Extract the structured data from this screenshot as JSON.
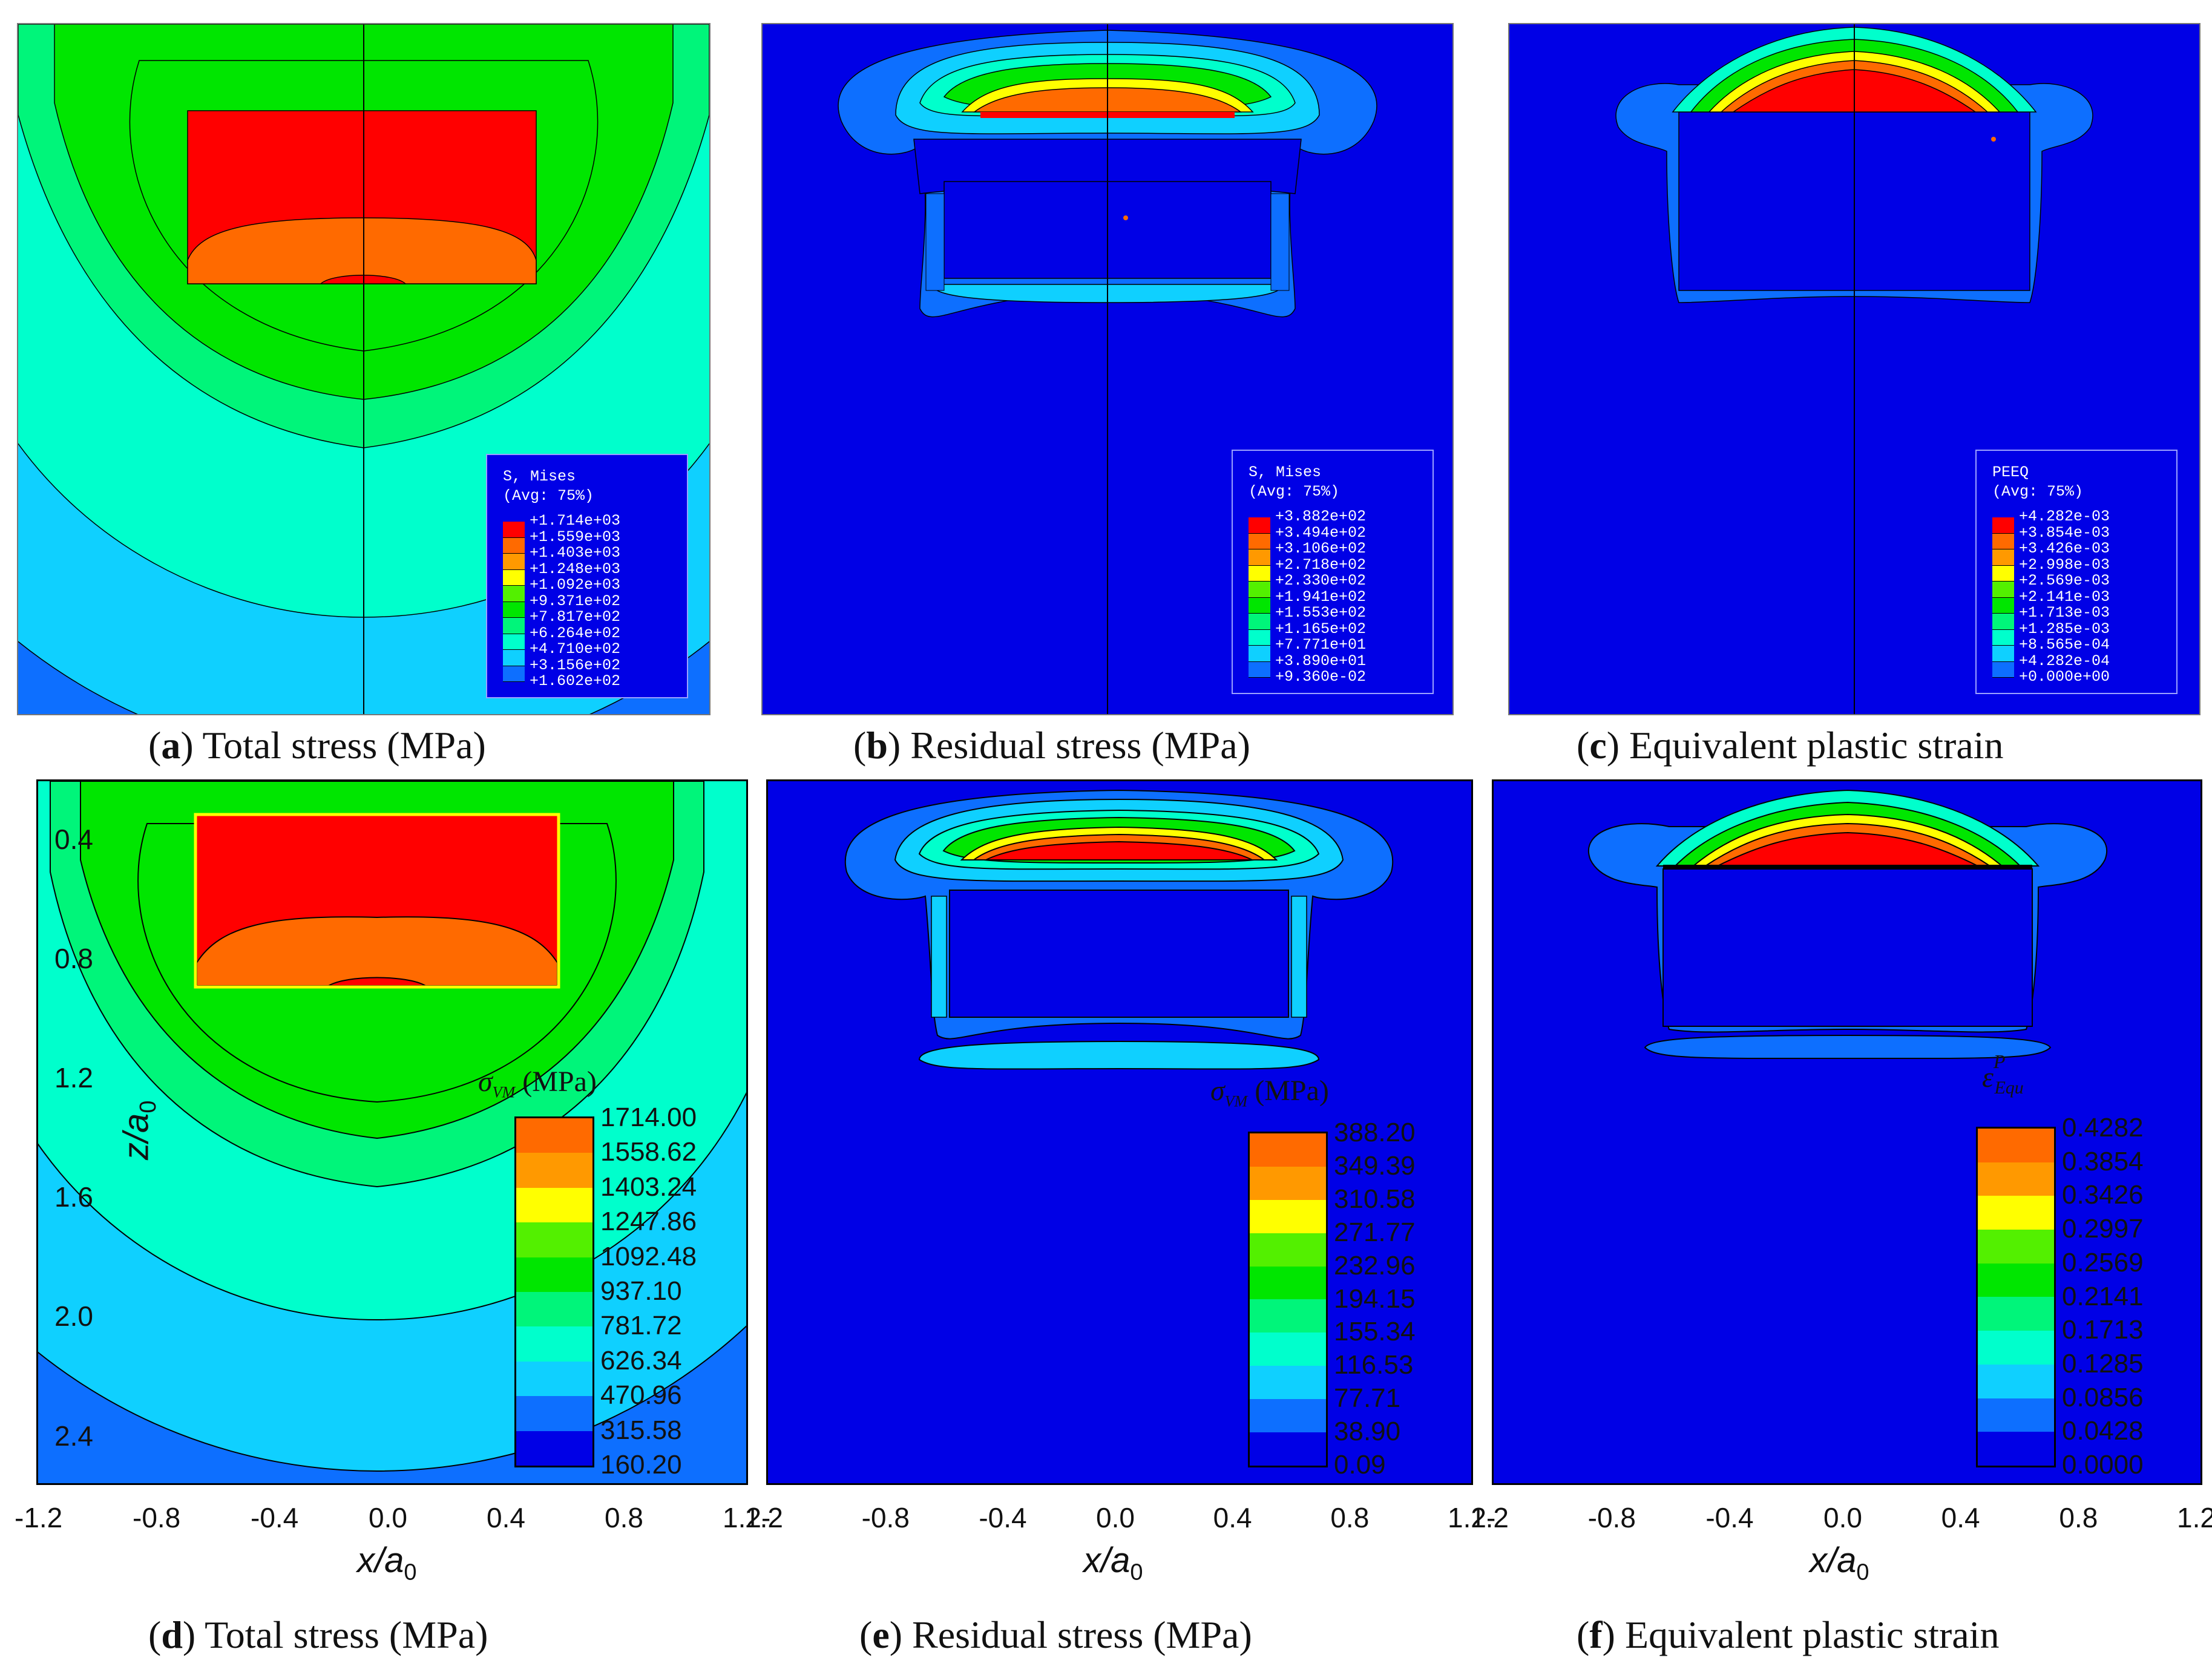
{
  "colors": {
    "band": [
      "#0000e6",
      "#0d6fff",
      "#0fd0ff",
      "#00ffcc",
      "#00f57a",
      "#00e600",
      "#53f000",
      "#ffff00",
      "#ff9900",
      "#ff6a00",
      "#ff0000"
    ],
    "background": "#0000e6",
    "outline": "#000000"
  },
  "panels": {
    "a": {
      "caption_letter": "a",
      "caption_text": ") Total stress (MPa)",
      "legend": {
        "title1": "S, Mises",
        "title2": "(Avg: 75%)",
        "values": [
          "+1.714e+03",
          "+1.559e+03",
          "+1.403e+03",
          "+1.248e+03",
          "+1.092e+03",
          "+9.371e+02",
          "+7.817e+02",
          "+6.264e+02",
          "+4.710e+02",
          "+3.156e+02",
          "+1.602e+02"
        ]
      }
    },
    "b": {
      "caption_letter": "b",
      "caption_text": ") Residual stress (MPa)",
      "legend": {
        "title1": "S, Mises",
        "title2": "(Avg: 75%)",
        "values": [
          "+3.882e+02",
          "+3.494e+02",
          "+3.106e+02",
          "+2.718e+02",
          "+2.330e+02",
          "+1.941e+02",
          "+1.553e+02",
          "+1.165e+02",
          "+7.771e+01",
          "+3.890e+01",
          "+9.360e-02"
        ]
      }
    },
    "c": {
      "caption_letter": "c",
      "caption_text": ") Equivalent plastic strain",
      "legend": {
        "title1": "PEEQ",
        "title2": "(Avg: 75%)",
        "values": [
          "+4.282e-03",
          "+3.854e-03",
          "+3.426e-03",
          "+2.998e-03",
          "+2.569e-03",
          "+2.141e-03",
          "+1.713e-03",
          "+1.285e-03",
          "+8.565e-04",
          "+4.282e-04",
          "+0.000e+00"
        ]
      }
    },
    "d": {
      "caption_letter": "d",
      "caption_text": ") Total stress (MPa)",
      "legend_title": "σ",
      "legend_sub": "VM",
      "legend_unit": " (MPa)",
      "ticks": [
        "1714.00",
        "1558.62",
        "1403.24",
        "1247.86",
        "1092.48",
        "937.10",
        "781.72",
        "626.34",
        "470.96",
        "315.58",
        "160.20"
      ]
    },
    "e": {
      "caption_letter": "e",
      "caption_text": ") Residual stress (MPa)",
      "legend_title": "σ",
      "legend_sub": "VM",
      "legend_unit": " (MPa)",
      "ticks": [
        "388.20",
        "349.39",
        "310.58",
        "271.77",
        "232.96",
        "194.15",
        "155.34",
        "116.53",
        "77.71",
        "38.90",
        "0.09"
      ]
    },
    "f": {
      "caption_letter": "f",
      "caption_text": ") Equivalent plastic strain",
      "legend_title": "ε",
      "legend_sup": "P",
      "legend_sub": "Equ",
      "ticks": [
        "0.4282",
        "0.3854",
        "0.3426",
        "0.2997",
        "0.2569",
        "0.2141",
        "0.1713",
        "0.1285",
        "0.0856",
        "0.0428",
        "0.0000"
      ]
    }
  },
  "axes": {
    "x_ticks_d": [
      "-1.2",
      "-0.8",
      "-0.4",
      "0.0",
      "0.4",
      "0.8",
      "1.2-"
    ],
    "x_ticks_e": [
      "1.2",
      "-0.8",
      "-0.4",
      "0.0",
      "0.4",
      "0.8",
      "1.2-"
    ],
    "x_ticks_f": [
      "1.2",
      "-0.8",
      "-0.4",
      "0.0",
      "0.4",
      "0.8",
      "1.2"
    ],
    "y_ticks": [
      "0.4",
      "0.8",
      "1.2",
      "1.6",
      "2.0",
      "2.4"
    ],
    "x_label": "x/a",
    "x_label_sub": "0",
    "y_label": "z/a",
    "y_label_sub": "0"
  }
}
